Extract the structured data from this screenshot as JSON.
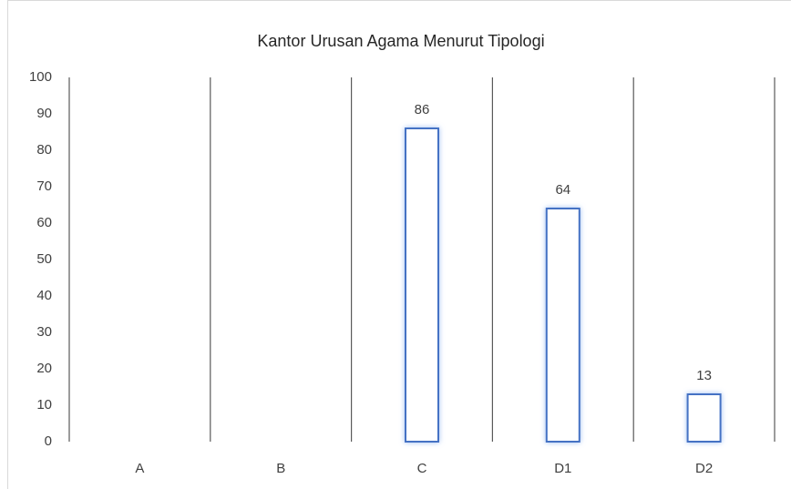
{
  "chart_data": {
    "type": "bar",
    "title": "Kantor Urusan Agama Menurut Tipologi",
    "categories": [
      "A",
      "B",
      "C",
      "D1",
      "D2"
    ],
    "values": [
      null,
      null,
      86,
      64,
      13
    ],
    "color": "#4472c4",
    "ylim": [
      0,
      100
    ],
    "yticks": [
      0,
      10,
      20,
      30,
      40,
      50,
      60,
      70,
      80,
      90,
      100
    ]
  }
}
